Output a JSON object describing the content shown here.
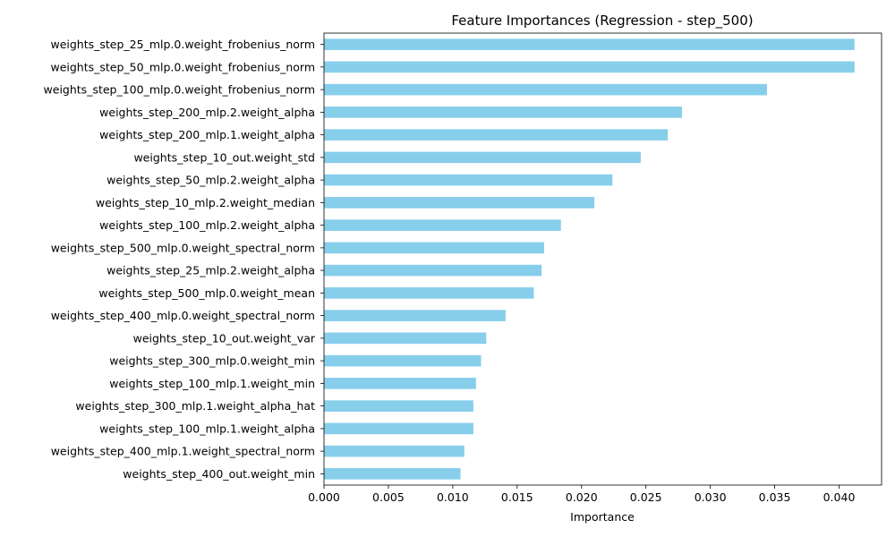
{
  "chart_data": {
    "type": "bar",
    "orientation": "horizontal",
    "title": "Feature Importances (Regression - step_500)",
    "xlabel": "Importance",
    "ylabel": "",
    "xlim": [
      0,
      0.0433
    ],
    "xticks": [
      "0.000",
      "0.005",
      "0.010",
      "0.015",
      "0.020",
      "0.025",
      "0.030",
      "0.035",
      "0.040"
    ],
    "grid": false,
    "bar_color": "#87CEEB",
    "categories": [
      "weights_step_25_mlp.0.weight_frobenius_norm",
      "weights_step_50_mlp.0.weight_frobenius_norm",
      "weights_step_100_mlp.0.weight_frobenius_norm",
      "weights_step_200_mlp.2.weight_alpha",
      "weights_step_200_mlp.1.weight_alpha",
      "weights_step_10_out.weight_std",
      "weights_step_50_mlp.2.weight_alpha",
      "weights_step_10_mlp.2.weight_median",
      "weights_step_100_mlp.2.weight_alpha",
      "weights_step_500_mlp.0.weight_spectral_norm",
      "weights_step_25_mlp.2.weight_alpha",
      "weights_step_500_mlp.0.weight_mean",
      "weights_step_400_mlp.0.weight_spectral_norm",
      "weights_step_10_out.weight_var",
      "weights_step_300_mlp.0.weight_min",
      "weights_step_100_mlp.1.weight_min",
      "weights_step_300_mlp.1.weight_alpha_hat",
      "weights_step_100_mlp.1.weight_alpha",
      "weights_step_400_mlp.1.weight_spectral_norm",
      "weights_step_400_out.weight_min"
    ],
    "values": [
      0.0412,
      0.0412,
      0.0344,
      0.0278,
      0.0267,
      0.0246,
      0.0224,
      0.021,
      0.0184,
      0.0171,
      0.0169,
      0.0163,
      0.0141,
      0.0126,
      0.0122,
      0.0118,
      0.0116,
      0.0116,
      0.0109,
      0.0106
    ]
  }
}
